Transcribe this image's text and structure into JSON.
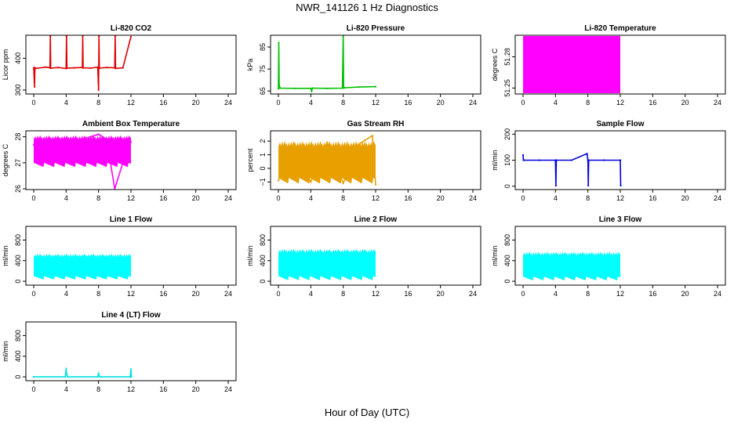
{
  "figure": {
    "title": "NWR_141126  1 Hz Diagnostics",
    "xlabel": "Hour of Day (UTC)"
  },
  "chart_data": [
    {
      "type": "line",
      "title": "Li-820 CO2",
      "ylabel": "Licor ppm",
      "color": "#e00000",
      "xlim": [
        0,
        24
      ],
      "xticks": [
        0,
        4,
        8,
        12,
        16,
        20,
        24
      ],
      "ylim": [
        290,
        470
      ],
      "yticks": [
        300,
        400
      ],
      "series": [
        {
          "x": [
            0,
            0.1,
            0.15,
            0.2,
            1.5,
            2.0,
            2.05,
            2.1,
            3.0,
            4.0,
            4.05,
            4.1,
            5.0,
            6.0,
            6.05,
            6.1,
            7.0,
            7.9,
            8.0,
            8.05,
            8.1,
            9.0,
            10.0,
            10.05,
            10.1,
            11.0,
            12.0
          ],
          "y": [
            370,
            310,
            370,
            368,
            372,
            370,
            470,
            369,
            371,
            368,
            470,
            369,
            370,
            371,
            470,
            370,
            369,
            372,
            300,
            470,
            369,
            371,
            370,
            470,
            368,
            370,
            468
          ]
        }
      ]
    },
    {
      "type": "line",
      "title": "Li-820 Pressure",
      "ylabel": "kPa",
      "color": "#00c000",
      "xlim": [
        0,
        24
      ],
      "xticks": [
        0,
        4,
        8,
        12,
        16,
        20,
        24
      ],
      "ylim": [
        64,
        90
      ],
      "yticks": [
        65,
        75,
        85
      ],
      "series": [
        {
          "x": [
            0,
            0.05,
            0.1,
            0.2,
            2,
            4,
            4.1,
            4.2,
            6,
            7.9,
            8.0,
            8.05,
            8.2,
            10,
            12
          ],
          "y": [
            66,
            87,
            68,
            66.3,
            66.2,
            66.2,
            65,
            66.3,
            66.2,
            66.3,
            90,
            66.4,
            66.5,
            66.8,
            67.0
          ]
        }
      ]
    },
    {
      "type": "area",
      "title": "Li-820 Temperature",
      "ylabel": "degrees C",
      "color": "#ff00ff",
      "xlim": [
        0,
        24
      ],
      "xticks": [
        0,
        4,
        8,
        12,
        16,
        20,
        24
      ],
      "ylim": [
        51.245,
        51.3
      ],
      "yticks": [
        51.25,
        51.28
      ],
      "band": {
        "x0": 0,
        "x1": 12,
        "lo": 51.245,
        "hi": 51.3
      }
    },
    {
      "type": "area",
      "title": "Ambient Box Temperature",
      "ylabel": "degrees C",
      "color": "#ff00ff",
      "xlim": [
        0,
        24
      ],
      "xticks": [
        0,
        4,
        8,
        12,
        16,
        20,
        24
      ],
      "ylim": [
        26.0,
        28.2
      ],
      "yticks": [
        26.0,
        27.0,
        28.0
      ],
      "band": {
        "x0": 0,
        "x1": 12,
        "lo": 27.0,
        "hi": 27.9
      },
      "series": [
        {
          "x": [
            0,
            2,
            4,
            6,
            7,
            8,
            9,
            10,
            11,
            12
          ],
          "y": [
            27.7,
            27.9,
            27.7,
            27.9,
            28.0,
            28.1,
            27.9,
            26.0,
            27.0,
            27.8
          ]
        }
      ]
    },
    {
      "type": "area",
      "title": "Gas Stream RH",
      "ylabel": "percent",
      "color": "#e8a000",
      "xlim": [
        0,
        24
      ],
      "xticks": [
        0,
        4,
        8,
        12,
        16,
        20,
        24
      ],
      "ylim": [
        -1.5,
        2.7
      ],
      "yticks": [
        -1,
        0,
        1,
        2
      ],
      "band": {
        "x0": 0,
        "x1": 12,
        "lo": -0.7,
        "hi": 1.6
      },
      "series": [
        {
          "x": [
            0,
            2,
            4,
            6,
            8,
            10,
            11.6,
            12
          ],
          "y": [
            -0.9,
            1.8,
            -1.0,
            1.9,
            -1.1,
            1.8,
            2.4,
            -1.2
          ]
        }
      ]
    },
    {
      "type": "line",
      "title": "Sample Flow",
      "ylabel": "ml/min",
      "color": "#0000e0",
      "xlim": [
        0,
        24
      ],
      "xticks": [
        0,
        4,
        8,
        12,
        16,
        20,
        24
      ],
      "ylim": [
        -10,
        210
      ],
      "yticks": [
        0,
        100,
        200
      ],
      "series": [
        {
          "x": [
            0,
            0.05,
            0.1,
            2,
            4.0,
            4.05,
            4.1,
            6,
            7.9,
            8.0,
            8.05,
            8.1,
            10,
            12.0,
            12.05
          ],
          "y": [
            120,
            100,
            100,
            100,
            100,
            2,
            100,
            100,
            125,
            100,
            2,
            100,
            100,
            100,
            2
          ]
        }
      ]
    },
    {
      "type": "area",
      "title": "Line 1 Flow",
      "ylabel": "ml/min",
      "color": "#00ffff",
      "xlim": [
        0,
        24
      ],
      "xticks": [
        0,
        4,
        8,
        12,
        16,
        20,
        24
      ],
      "ylim": [
        -60,
        1050
      ],
      "yticks": [
        0,
        400,
        800
      ],
      "band": {
        "x0": 0,
        "x1": 12,
        "lo": 100,
        "hi": 470
      }
    },
    {
      "type": "area",
      "title": "Line 2 Flow",
      "ylabel": "ml/min",
      "color": "#00ffff",
      "xlim": [
        0,
        24
      ],
      "xticks": [
        0,
        4,
        8,
        12,
        16,
        20,
        24
      ],
      "ylim": [
        -60,
        1050
      ],
      "yticks": [
        0,
        400,
        800
      ],
      "band": {
        "x0": 0,
        "x1": 12,
        "lo": 100,
        "hi": 550
      }
    },
    {
      "type": "area",
      "title": "Line 3 Flow",
      "ylabel": "ml/min",
      "color": "#00ffff",
      "xlim": [
        0,
        24
      ],
      "xticks": [
        0,
        4,
        8,
        12,
        16,
        20,
        24
      ],
      "ylim": [
        -60,
        1050
      ],
      "yticks": [
        0,
        400,
        800
      ],
      "band": {
        "x0": 0,
        "x1": 12,
        "lo": 90,
        "hi": 500
      }
    },
    {
      "type": "line",
      "title": "Line 4 (LT) Flow",
      "ylabel": "ml/min",
      "color": "#00e0e0",
      "xlim": [
        0,
        24
      ],
      "xticks": [
        0,
        4,
        8,
        12,
        16,
        20,
        24
      ],
      "ylim": [
        -60,
        1050
      ],
      "yticks": [
        0,
        400,
        800
      ],
      "series": [
        {
          "x": [
            0,
            3.9,
            4.0,
            4.05,
            4.2,
            7.9,
            8.0,
            8.05,
            8.2,
            11.9,
            12.0,
            12.05
          ],
          "y": [
            0,
            0,
            160,
            60,
            0,
            0,
            70,
            20,
            0,
            0,
            150,
            0
          ]
        }
      ]
    }
  ]
}
